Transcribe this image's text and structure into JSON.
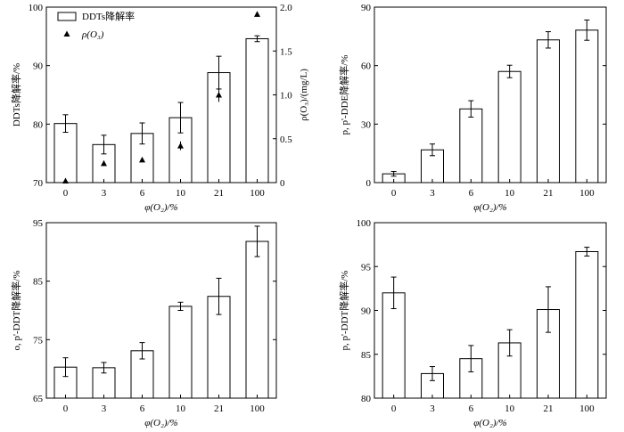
{
  "chart_data": [
    {
      "type": "bar",
      "categories": [
        "0",
        "3",
        "6",
        "10",
        "21",
        "100"
      ],
      "xlabel": "φ(O₂)/%",
      "ylabel": "DDTs降解率/%",
      "ylim": [
        70,
        100
      ],
      "yticks": [
        "70",
        "80",
        "90",
        "100"
      ],
      "series": [
        {
          "name": "DDTs降解率",
          "values": [
            80.1,
            76.5,
            78.4,
            81.1,
            88.8,
            94.6
          ],
          "errors": [
            1.5,
            1.6,
            1.8,
            2.6,
            2.8,
            0.5
          ]
        }
      ],
      "secondary": {
        "name": "ρ(O₃)",
        "type": "scatter",
        "marker": "triangle",
        "ylabel": "ρ(O₃)/(mg/L)",
        "ylim": [
          0,
          2.0
        ],
        "yticks": [
          "0",
          "0.5",
          "1.0",
          "1.5",
          "2.0"
        ],
        "values": [
          0.02,
          0.22,
          0.26,
          0.42,
          1.0,
          1.92
        ],
        "errors": [
          0,
          0.03,
          0.02,
          0.05,
          0.08,
          0.03
        ]
      },
      "legend": "top-left"
    },
    {
      "type": "bar",
      "categories": [
        "0",
        "3",
        "6",
        "10",
        "21",
        "100"
      ],
      "xlabel": "φ(O₂)/%",
      "ylabel": "p, p'-DDE降解率/%",
      "ylim": [
        0,
        90
      ],
      "yticks": [
        "0",
        "30",
        "60",
        "90"
      ],
      "series": [
        {
          "values": [
            4.5,
            16.8,
            37.8,
            57.0,
            73.2,
            78.2
          ],
          "errors": [
            1.2,
            3.0,
            4.2,
            3.2,
            4.2,
            5.2
          ]
        }
      ]
    },
    {
      "type": "bar",
      "categories": [
        "0",
        "3",
        "6",
        "10",
        "21",
        "100"
      ],
      "xlabel": "φ(O₂)/%",
      "ylabel": "o, p'-DDT降解率/%",
      "ylim": [
        65,
        95
      ],
      "yticks": [
        "65",
        "75",
        "85",
        "95"
      ],
      "series": [
        {
          "values": [
            70.3,
            70.2,
            73.1,
            80.7,
            82.4,
            91.8
          ],
          "errors": [
            1.6,
            0.9,
            1.4,
            0.7,
            3.1,
            2.6
          ]
        }
      ]
    },
    {
      "type": "bar",
      "categories": [
        "0",
        "3",
        "6",
        "10",
        "21",
        "100"
      ],
      "xlabel": "φ(O₂)/%",
      "ylabel": "p, p'-DDT降解率/%",
      "ylim": [
        80,
        100
      ],
      "yticks": [
        "80",
        "85",
        "90",
        "95",
        "100"
      ],
      "series": [
        {
          "values": [
            92.0,
            82.8,
            84.5,
            86.3,
            90.1,
            96.7
          ],
          "errors": [
            1.8,
            0.8,
            1.5,
            1.5,
            2.6,
            0.5
          ]
        }
      ]
    }
  ]
}
